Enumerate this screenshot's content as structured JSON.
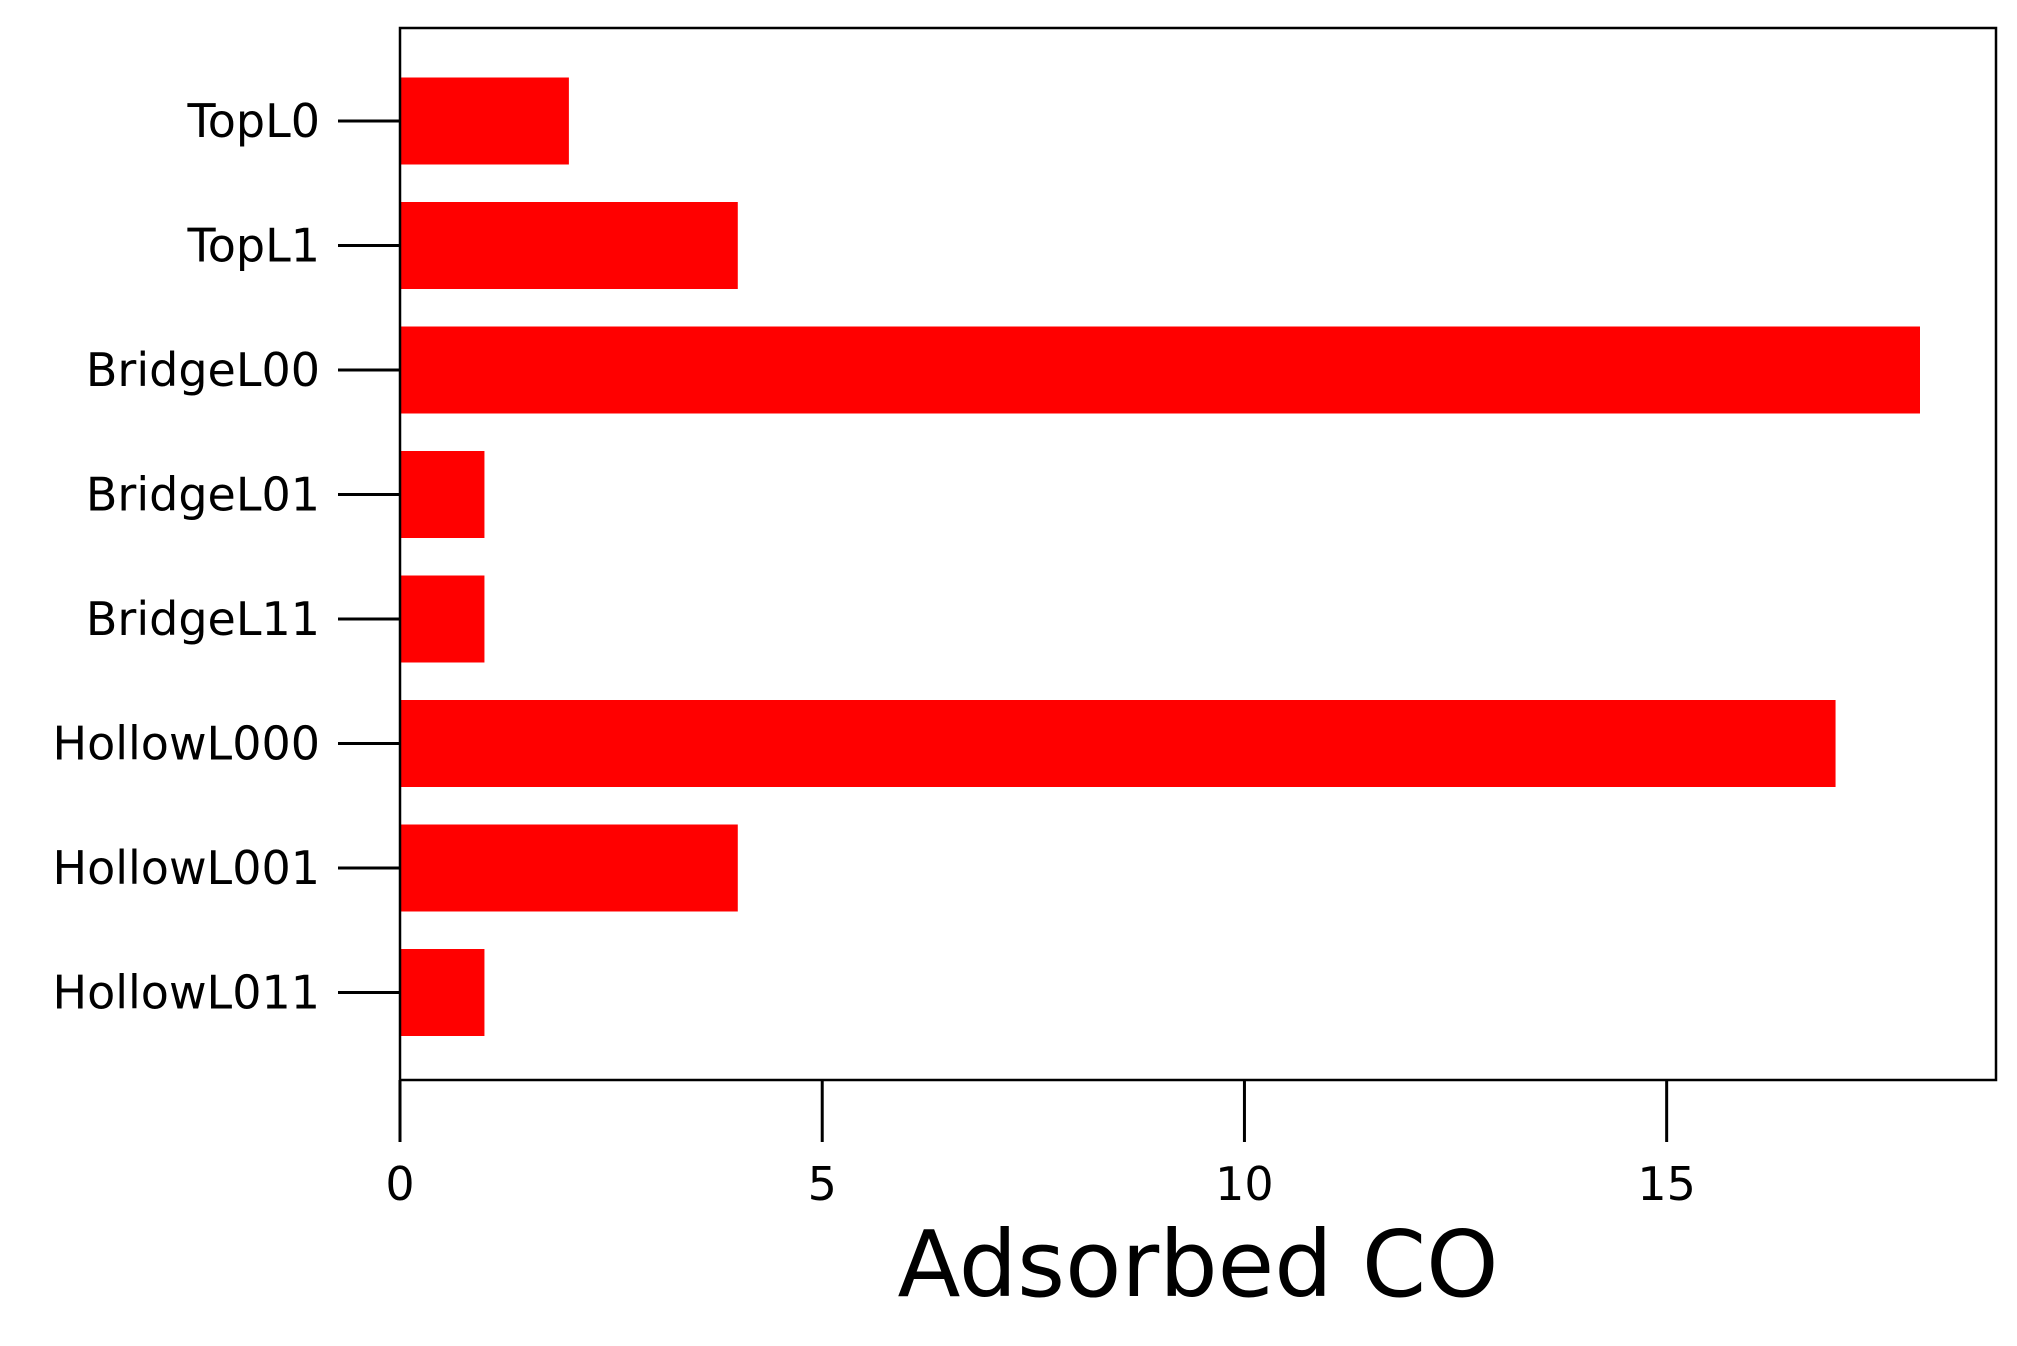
{
  "chart_data": {
    "type": "bar",
    "orientation": "horizontal",
    "title": "",
    "xlabel": "Adsorbed CO",
    "ylabel": "",
    "categories": [
      "TopL0",
      "TopL1",
      "BridgeL00",
      "BridgeL01",
      "BridgeL11",
      "HollowL000",
      "HollowL001",
      "HollowL011"
    ],
    "values": [
      2,
      4,
      18,
      1,
      1,
      17,
      4,
      1
    ],
    "xlim": [
      0,
      18.9
    ],
    "xticks": [
      0,
      5,
      10,
      15
    ],
    "xtick_labels": [
      "0",
      "5",
      "10",
      "15"
    ],
    "grid": false,
    "legend": "none",
    "bar_color": "#ff0000"
  }
}
